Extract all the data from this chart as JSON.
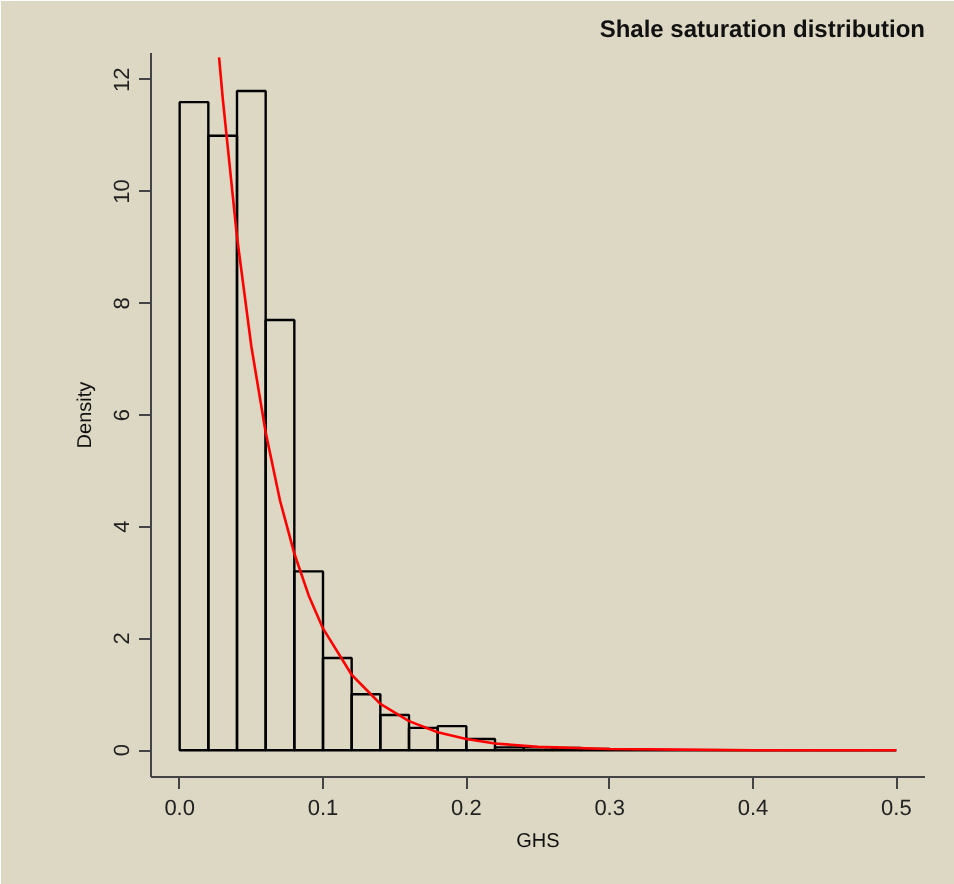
{
  "chart_data": {
    "type": "histogram",
    "title": "Shale saturation distribution",
    "xlabel": "GHS",
    "ylabel": "Density",
    "bins": [
      0,
      0.02,
      0.04,
      0.06,
      0.08,
      0.1,
      0.12,
      0.14,
      0.16,
      0.18,
      0.2,
      0.22,
      0.24,
      0.26,
      0.28,
      0.3,
      0.32,
      0.34,
      0.36,
      0.38,
      0.4,
      0.42,
      0.44,
      0.46,
      0.48,
      0.5
    ],
    "values": [
      11.6,
      11.0,
      11.8,
      7.7,
      3.2,
      1.65,
      1.0,
      0.63,
      0.4,
      0.43,
      0.2,
      0.05,
      0.05,
      0.04,
      0.02,
      0,
      0,
      0,
      0,
      0,
      0,
      0,
      0,
      0,
      0
    ],
    "color": "#000000",
    "series": [
      {
        "type": "line",
        "color": "#ff0000",
        "x": [
          0.0275,
          0.03,
          0.04,
          0.05,
          0.06,
          0.07,
          0.08,
          0.09,
          0.1,
          0.12,
          0.14,
          0.16,
          0.18,
          0.2,
          0.22,
          0.25,
          0.3,
          0.35,
          0.4,
          0.5
        ],
        "values": [
          12.4,
          11.68,
          9.19,
          7.23,
          5.69,
          4.47,
          3.52,
          2.77,
          2.18,
          1.35,
          0.83,
          0.52,
          0.32,
          0.2,
          0.12,
          0.06,
          0.02,
          0.01,
          0,
          0
        ]
      }
    ],
    "xlim": [
      -0.02,
      0.52
    ],
    "ylim": [
      -0.48,
      12.48
    ],
    "xticks": [
      {
        "value": 0,
        "label": "0.0"
      },
      0.1,
      0.2,
      0.3,
      0.4,
      0.5
    ],
    "yticks": [
      0,
      2,
      4,
      6,
      8,
      10,
      12
    ],
    "grid": false
  }
}
